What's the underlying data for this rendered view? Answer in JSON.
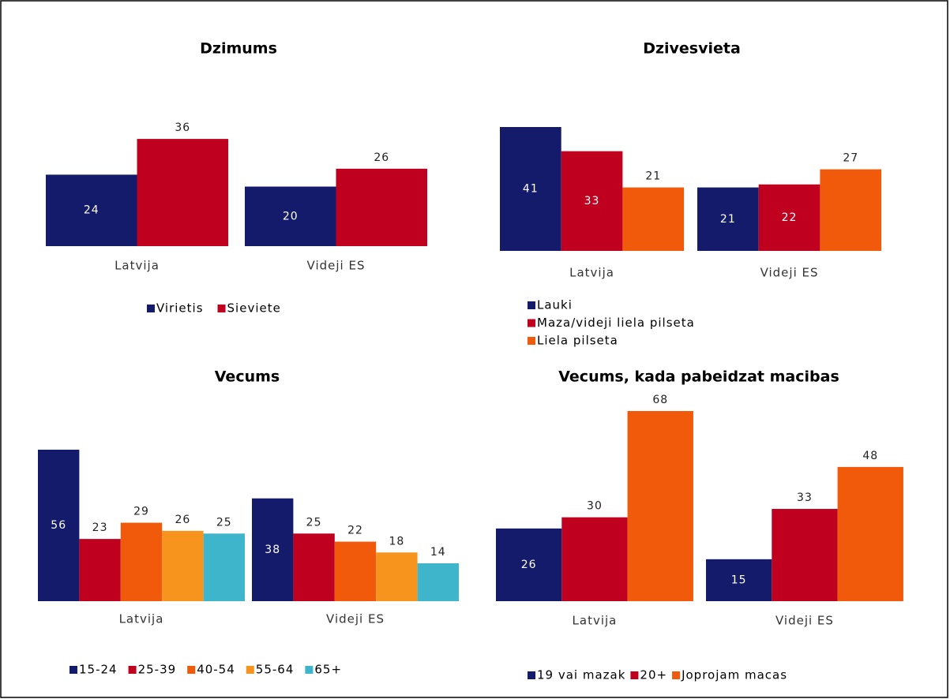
{
  "chart_data": [
    {
      "type": "bar",
      "title": "Dzimums",
      "categories": [
        "Latvija",
        "Videji ES"
      ],
      "series": [
        {
          "name": "Virietis",
          "color": "#141b6b",
          "values": [
            24,
            20
          ]
        },
        {
          "name": "Sieviete",
          "color": "#c0001f",
          "values": [
            36,
            26
          ]
        }
      ],
      "ylim": [
        0,
        40
      ]
    },
    {
      "type": "bar",
      "title": "Dzivesvieta",
      "categories": [
        "Latvija",
        "Videji ES"
      ],
      "series": [
        {
          "name": "Lauki",
          "color": "#141b6b",
          "values": [
            41,
            21
          ]
        },
        {
          "name": "Maza/videji liela pilseta",
          "color": "#c0001f",
          "values": [
            33,
            22
          ]
        },
        {
          "name": "Liela pilseta",
          "color": "#f05a0a",
          "values": [
            21,
            27
          ]
        }
      ],
      "ylim": [
        0,
        41
      ]
    },
    {
      "type": "bar",
      "title": "Vecums",
      "categories": [
        "Latvija",
        "Videji ES"
      ],
      "series": [
        {
          "name": "15-24",
          "color": "#141b6b",
          "values": [
            56,
            38
          ]
        },
        {
          "name": "25-39",
          "color": "#c0001f",
          "values": [
            23,
            25
          ]
        },
        {
          "name": "40-54",
          "color": "#f05a0a",
          "values": [
            29,
            22
          ]
        },
        {
          "name": "55-64",
          "color": "#f7941d",
          "values": [
            26,
            18
          ]
        },
        {
          "name": "65+",
          "color": "#3fb5cc",
          "values": [
            25,
            14
          ]
        }
      ],
      "ylim": [
        0,
        56
      ]
    },
    {
      "type": "bar",
      "title": "Vecums, kada pabeidzat macibas",
      "categories": [
        "Latvija",
        "Videji ES"
      ],
      "series": [
        {
          "name": "19 vai mazak",
          "color": "#141b6b",
          "values": [
            26,
            15
          ]
        },
        {
          "name": "20+",
          "color": "#c0001f",
          "values": [
            30,
            33
          ]
        },
        {
          "name": "Joprojam macas",
          "color": "#f05a0a",
          "values": [
            68,
            48
          ]
        }
      ],
      "ylim": [
        0,
        68
      ]
    }
  ]
}
